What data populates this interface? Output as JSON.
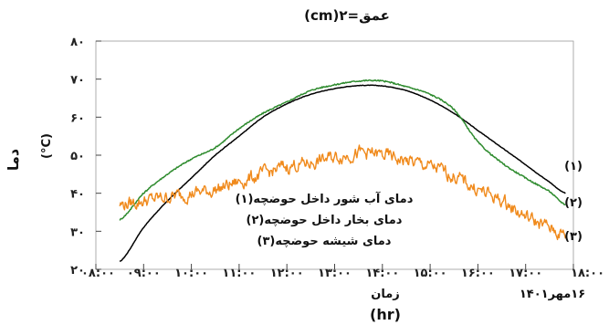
{
  "chart_data": {
    "type": "line",
    "title": "عمق=۲(cm)",
    "ylabel": "دما",
    "yunit": "(°C)",
    "xlabel": "زمان",
    "xunit": "(hr)",
    "date_label": "۱۶مهر۱۴۰۱",
    "ylim": [
      20,
      80
    ],
    "y_ticks": [
      20,
      30,
      40,
      50,
      60,
      70,
      80
    ],
    "y_tick_labels": [
      "۲۰",
      "۳۰",
      "۴۰",
      "۵۰",
      "۶۰",
      "۷۰",
      "۸۰"
    ],
    "x_ticks": [
      "08:00",
      "09:00",
      "10:00",
      "11:00",
      "12:00",
      "13:00",
      "14:00",
      "15:00",
      "16:00",
      "17:00",
      "18:00"
    ],
    "x_tick_labels": [
      "۰۸:۰۰",
      "۰۹:۰۰",
      "۱۰:۰۰",
      "۱۱:۰۰",
      "۱۲:۰۰",
      "۱۳:۰۰",
      "۱۴:۰۰",
      "۱۵:۰۰",
      "۱۶:۰۰",
      "۱۷:۰۰",
      "۱۸:۰۰"
    ],
    "legend": [
      "دمای آب شور داخل حوضچه(۱)",
      "دمای بخار داخل حوضچه(۲)",
      "دمای شیشه حوضچه(۳)"
    ],
    "series": [
      {
        "label": "(۱)",
        "color": "#000000",
        "x": [
          "08:30",
          "09:00",
          "09:30",
          "10:00",
          "10:30",
          "11:00",
          "11:30",
          "12:00",
          "12:30",
          "13:00",
          "13:30",
          "14:00",
          "14:30",
          "15:00",
          "15:30",
          "16:00",
          "16:30",
          "17:00",
          "17:30",
          "17:50"
        ],
        "y": [
          22,
          31,
          38,
          44,
          50,
          55,
          60,
          63.5,
          66,
          67.5,
          68.3,
          68.2,
          67,
          64.5,
          61,
          56.5,
          52,
          47.5,
          43,
          40
        ]
      },
      {
        "label": "(۲)",
        "color": "#2e8b2e",
        "x": [
          "08:30",
          "09:00",
          "09:30",
          "10:00",
          "10:30",
          "11:00",
          "11:30",
          "12:00",
          "12:30",
          "13:00",
          "13:30",
          "14:00",
          "14:30",
          "15:00",
          "15:30",
          "16:00",
          "16:30",
          "17:00",
          "17:30",
          "17:50"
        ],
        "y": [
          33,
          40,
          45,
          49,
          52,
          57,
          61,
          64,
          67,
          68.5,
          69.5,
          69.5,
          68,
          66,
          62,
          53.5,
          48,
          44,
          40.5,
          37
        ]
      },
      {
        "label": "(۳)",
        "color": "#f08a1c",
        "x": [
          "08:30",
          "09:00",
          "09:30",
          "10:00",
          "10:30",
          "11:00",
          "11:30",
          "12:00",
          "12:30",
          "13:00",
          "13:30",
          "14:00",
          "14:30",
          "15:00",
          "15:30",
          "16:00",
          "16:30",
          "17:00",
          "17:30",
          "17:50"
        ],
        "y": [
          37,
          38,
          39,
          40,
          41,
          43,
          45,
          47,
          48,
          49.5,
          50.5,
          50,
          48.5,
          47,
          44.5,
          41,
          38,
          34,
          31,
          29
        ]
      }
    ]
  }
}
